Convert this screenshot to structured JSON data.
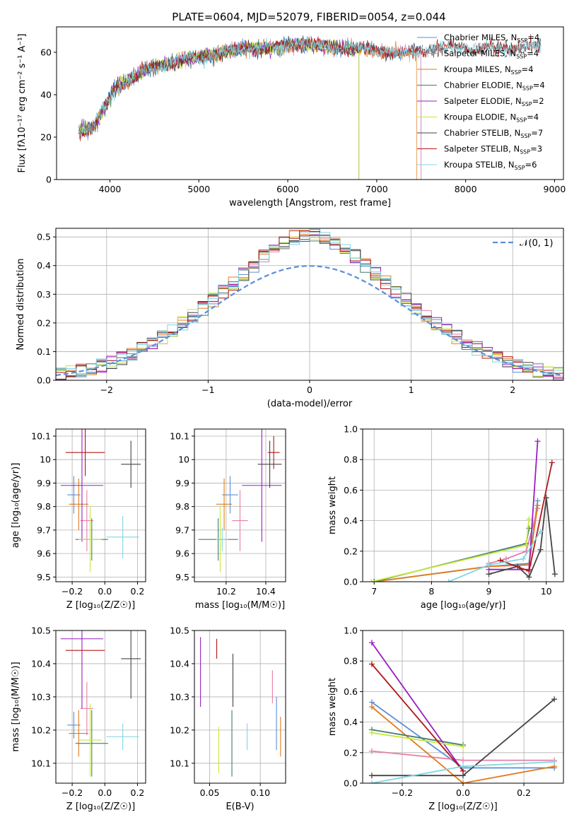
{
  "figure_title": "PLATE=0604, MJD=52079, FIBERID=0054, z=0.044",
  "colors": {
    "Chabrier MILES": "#5b8fd8",
    "Salpeter MILES": "#e67fa8",
    "Kroupa MILES": "#e07b1e",
    "Chabrier ELODIE": "#3f7f6e",
    "Salpeter ELODIE": "#9b1fc0",
    "Kroupa ELODIE": "#c8e83c",
    "Chabrier STELIB": "#444444",
    "Salpeter STELIB": "#b01818",
    "Kroupa STELIB": "#7fd6e2",
    "normal_curve": "#5b8fd8"
  },
  "chart_data": [
    {
      "id": "spectrum",
      "type": "line",
      "title": "PLATE=0604, MJD=52079, FIBERID=0054, z=0.044",
      "xlabel": "wavelength [Angstrom, rest frame]",
      "ylabel": "Flux [fλ10⁻¹⁷ erg cm⁻² s⁻¹ A⁻¹]",
      "xlim": [
        3400,
        9100
      ],
      "ylim": [
        0,
        72
      ],
      "xticks": [
        4000,
        5000,
        6000,
        7000,
        8000,
        9000
      ],
      "yticks": [
        0,
        20,
        40,
        60
      ],
      "grid": false,
      "legend_position": "top-right",
      "legend": [
        "Chabrier MILES, N_SSP=4",
        "Salpeter MILES, N_SSP=4",
        "Kroupa MILES, N_SSP=4",
        "Chabrier ELODIE, N_SSP=4",
        "Salpeter ELODIE, N_SSP=2",
        "Kroupa ELODIE, N_SSP=4",
        "Chabrier STELIB, N_SSP=7",
        "Salpeter STELIB, N_SSP=3",
        "Kroupa STELIB, N_SSP=6"
      ],
      "continuum": {
        "x": [
          3650,
          3800,
          3950,
          4050,
          4250,
          4400,
          4600,
          4900,
          5200,
          5500,
          5800,
          6100,
          6400,
          6700,
          7000,
          7300,
          7600,
          8000,
          8400,
          8800
        ],
        "y": [
          23,
          24,
          34,
          43,
          48,
          52,
          54,
          57,
          59,
          62,
          62,
          64,
          63,
          62,
          61,
          59,
          62,
          62,
          62,
          63
        ]
      },
      "curve_ranges": {
        "Chabrier MILES": [
          3650,
          7500
        ],
        "Salpeter MILES": [
          3650,
          7500
        ],
        "Kroupa MILES": [
          3650,
          7450
        ],
        "Chabrier ELODIE": [
          3650,
          6800
        ],
        "Salpeter ELODIE": [
          3650,
          6800
        ],
        "Kroupa ELODIE": [
          3650,
          6800
        ],
        "Chabrier STELIB": [
          3650,
          8850
        ],
        "Salpeter STELIB": [
          3650,
          8850
        ],
        "Kroupa STELIB": [
          3650,
          8850
        ]
      }
    },
    {
      "id": "residuals",
      "type": "line",
      "xlabel": "(data-model)/error",
      "ylabel": "Normed distribution",
      "xlim": [
        -2.5,
        2.5
      ],
      "ylim": [
        0,
        0.53
      ],
      "xticks": [
        -2,
        -1,
        0,
        1,
        2
      ],
      "xtick_labels": [
        "−2",
        "−1",
        "0",
        "1",
        "2"
      ],
      "yticks": [
        0.0,
        0.1,
        0.2,
        0.3,
        0.4,
        0.5
      ],
      "grid": true,
      "legend_position": "top-right",
      "legend": [
        "𝒩(0, 1)"
      ],
      "histogram_bins": 50
    },
    {
      "id": "age_vs_Z",
      "type": "scatter",
      "xlabel": "Z [log₁₀(Z/Z☉)]",
      "ylabel": "age  [log₁₀(age/yr)]",
      "xlim": [
        -0.3,
        0.25
      ],
      "ylim": [
        9.48,
        10.13
      ],
      "xticks": [
        -0.2,
        0.0,
        0.2
      ],
      "xtick_labels": [
        "−0.2",
        "0.0",
        "0.2"
      ],
      "yticks": [
        9.5,
        9.6,
        9.7,
        9.8,
        9.9,
        10.0,
        10.1
      ],
      "grid": true,
      "points": [
        {
          "series": "Chabrier MILES",
          "x": -0.19,
          "y": 9.85,
          "xerr": 0.04,
          "yerr": 0.08
        },
        {
          "series": "Salpeter MILES",
          "x": -0.11,
          "y": 9.74,
          "xerr": 0.04,
          "yerr": 0.13
        },
        {
          "series": "Kroupa MILES",
          "x": -0.16,
          "y": 9.81,
          "xerr": 0.06,
          "yerr": 0.11
        },
        {
          "series": "Chabrier ELODIE",
          "x": -0.08,
          "y": 9.66,
          "xerr": 0.1,
          "yerr": 0.09
        },
        {
          "series": "Salpeter ELODIE",
          "x": -0.14,
          "y": 9.89,
          "xerr": 0.13,
          "yerr": 0.24
        },
        {
          "series": "Kroupa ELODIE",
          "x": -0.09,
          "y": 9.66,
          "xerr": 0.07,
          "yerr": 0.14
        },
        {
          "series": "Chabrier STELIB",
          "x": 0.16,
          "y": 9.98,
          "xerr": 0.06,
          "yerr": 0.1
        },
        {
          "series": "Salpeter STELIB",
          "x": -0.12,
          "y": 10.03,
          "xerr": 0.12,
          "yerr": 0.1
        },
        {
          "series": "Kroupa STELIB",
          "x": 0.11,
          "y": 9.67,
          "xerr": 0.1,
          "yerr": 0.09
        }
      ]
    },
    {
      "id": "age_vs_mass",
      "type": "scatter",
      "xlabel": "mass [log₁₀(M/M☉)]",
      "xlim": [
        10.04,
        10.5
      ],
      "ylim": [
        9.48,
        10.13
      ],
      "xticks": [
        10.2,
        10.4
      ],
      "yticks": [
        9.5,
        9.6,
        9.7,
        9.8,
        9.9,
        10.0,
        10.1
      ],
      "grid": true,
      "points": [
        {
          "series": "Chabrier MILES",
          "x": 10.22,
          "y": 9.85,
          "xerr": 0.04,
          "yerr": 0.08
        },
        {
          "series": "Salpeter MILES",
          "x": 10.27,
          "y": 9.74,
          "xerr": 0.04,
          "yerr": 0.13
        },
        {
          "series": "Kroupa MILES",
          "x": 10.19,
          "y": 9.81,
          "xerr": 0.04,
          "yerr": 0.11
        },
        {
          "series": "Chabrier ELODIE",
          "x": 10.16,
          "y": 9.66,
          "xerr": 0.1,
          "yerr": 0.09
        },
        {
          "series": "Salpeter ELODIE",
          "x": 10.38,
          "y": 9.89,
          "xerr": 0.1,
          "yerr": 0.24
        },
        {
          "series": "Kroupa ELODIE",
          "x": 10.17,
          "y": 9.66,
          "xerr": 0.02,
          "yerr": 0.14
        },
        {
          "series": "Chabrier STELIB",
          "x": 10.42,
          "y": 9.98,
          "xerr": 0.06,
          "yerr": 0.1
        },
        {
          "series": "Salpeter STELIB",
          "x": 10.44,
          "y": 10.03,
          "xerr": 0.03,
          "yerr": 0.07
        },
        {
          "series": "Kroupa STELIB",
          "x": 10.18,
          "y": 9.66,
          "xerr": 0.03,
          "yerr": 0.05
        }
      ]
    },
    {
      "id": "mass_weight_vs_age",
      "type": "line",
      "xlabel": "age  [log₁₀(age/yr)]",
      "ylabel": "mass weight",
      "xlim": [
        6.8,
        10.3
      ],
      "ylim": [
        0,
        1
      ],
      "xticks": [
        7,
        8,
        9,
        10
      ],
      "yticks": [
        0.0,
        0.2,
        0.4,
        0.6,
        0.8,
        1.0
      ],
      "grid": true,
      "series": [
        {
          "series": "Chabrier MILES",
          "x": [
            7.0,
            9.0,
            9.7,
            9.85
          ],
          "y": [
            0.0,
            0.1,
            0.12,
            0.53
          ]
        },
        {
          "series": "Salpeter MILES",
          "x": [
            9.0,
            9.3,
            9.65,
            9.85
          ],
          "y": [
            0.12,
            0.15,
            0.2,
            0.48
          ]
        },
        {
          "series": "Kroupa MILES",
          "x": [
            7.0,
            9.0,
            9.7,
            9.85
          ],
          "y": [
            0.0,
            0.1,
            0.11,
            0.5
          ]
        },
        {
          "series": "Chabrier ELODIE",
          "x": [
            7.0,
            9.65,
            9.7
          ],
          "y": [
            0.0,
            0.25,
            0.35
          ]
        },
        {
          "series": "Salpeter ELODIE",
          "x": [
            9.0,
            9.7,
            9.85
          ],
          "y": [
            0.08,
            0.08,
            0.92
          ]
        },
        {
          "series": "Kroupa ELODIE",
          "x": [
            6.95,
            9.65,
            9.7
          ],
          "y": [
            0.0,
            0.24,
            0.41
          ]
        },
        {
          "series": "Chabrier STELIB",
          "x": [
            9.0,
            9.5,
            9.7,
            9.9,
            10.0,
            10.15
          ],
          "y": [
            0.05,
            0.1,
            0.03,
            0.21,
            0.55,
            0.05
          ]
        },
        {
          "series": "Salpeter STELIB",
          "x": [
            9.2,
            9.7,
            10.1
          ],
          "y": [
            0.14,
            0.07,
            0.78
          ]
        },
        {
          "series": "Kroupa STELIB",
          "x": [
            8.3,
            9.0,
            9.6,
            9.9
          ],
          "y": [
            0.0,
            0.11,
            0.15,
            0.33
          ]
        }
      ]
    },
    {
      "id": "mass_vs_Z",
      "type": "scatter",
      "xlabel": "Z [log₁₀(Z/Z☉)]",
      "ylabel": "mass [log₁₀(M/M☉)]",
      "xlim": [
        -0.3,
        0.25
      ],
      "ylim": [
        10.04,
        10.5
      ],
      "xticks": [
        -0.2,
        0.0,
        0.2
      ],
      "xtick_labels": [
        "−0.2",
        "0.0",
        "0.2"
      ],
      "yticks": [
        10.1,
        10.2,
        10.3,
        10.4,
        10.5
      ],
      "grid": true,
      "points": [
        {
          "series": "Chabrier MILES",
          "x": -0.19,
          "y": 10.215,
          "xerr": 0.04,
          "yerr": 0.04
        },
        {
          "series": "Salpeter MILES",
          "x": -0.11,
          "y": 10.265,
          "xerr": 0.04,
          "yerr": 0.08
        },
        {
          "series": "Kroupa MILES",
          "x": -0.16,
          "y": 10.19,
          "xerr": 0.06,
          "yerr": 0.07
        },
        {
          "series": "Chabrier ELODIE",
          "x": -0.08,
          "y": 10.16,
          "xerr": 0.1,
          "yerr": 0.1
        },
        {
          "series": "Salpeter ELODIE",
          "x": -0.14,
          "y": 10.475,
          "xerr": 0.13,
          "yerr": 0.21
        },
        {
          "series": "Kroupa ELODIE",
          "x": -0.09,
          "y": 10.17,
          "xerr": 0.07,
          "yerr": 0.11
        },
        {
          "series": "Chabrier STELIB",
          "x": 0.16,
          "y": 10.415,
          "xerr": 0.06,
          "yerr": 0.12
        },
        {
          "series": "Salpeter STELIB",
          "x": -0.12,
          "y": 10.44,
          "xerr": 0.12,
          "yerr": 0.0
        },
        {
          "series": "Kroupa STELIB",
          "x": 0.11,
          "y": 10.18,
          "xerr": 0.1,
          "yerr": 0.04
        }
      ]
    },
    {
      "id": "mass_vs_ebv",
      "type": "scatter",
      "xlabel": "E(B-V)",
      "xlim": [
        0.035,
        0.125
      ],
      "ylim": [
        10.04,
        10.5
      ],
      "xticks": [
        0.05,
        0.1
      ],
      "xtick_labels": [
        "0.05",
        "0.10"
      ],
      "yticks": [
        10.1,
        10.2,
        10.3,
        10.4,
        10.5
      ],
      "grid": true,
      "points": [
        {
          "series": "Chabrier MILES",
          "x": 0.116,
          "y": 10.22,
          "xerr": 0.0,
          "yerr": 0.08
        },
        {
          "series": "Salpeter MILES",
          "x": 0.112,
          "y": 10.33,
          "xerr": 0.0,
          "yerr": 0.05
        },
        {
          "series": "Kroupa MILES",
          "x": 0.12,
          "y": 10.18,
          "xerr": 0.0,
          "yerr": 0.06
        },
        {
          "series": "Chabrier ELODIE",
          "x": 0.072,
          "y": 10.16,
          "xerr": 0.0,
          "yerr": 0.1
        },
        {
          "series": "Salpeter ELODIE",
          "x": 0.041,
          "y": 10.375,
          "xerr": 0.0,
          "yerr": 0.105
        },
        {
          "series": "Kroupa ELODIE",
          "x": 0.059,
          "y": 10.14,
          "xerr": 0.0,
          "yerr": 0.07
        },
        {
          "series": "Chabrier STELIB",
          "x": 0.073,
          "y": 10.35,
          "xerr": 0.0,
          "yerr": 0.08
        },
        {
          "series": "Salpeter STELIB",
          "x": 0.057,
          "y": 10.445,
          "xerr": 0.0,
          "yerr": 0.03
        },
        {
          "series": "Kroupa STELIB",
          "x": 0.087,
          "y": 10.18,
          "xerr": 0.0,
          "yerr": 0.04
        }
      ]
    },
    {
      "id": "mass_weight_vs_Z",
      "type": "line",
      "xlabel": "Z [log₁₀(Z/Z☉)]",
      "ylabel": "mass weight",
      "xlim": [
        -0.33,
        0.33
      ],
      "ylim": [
        0,
        1
      ],
      "xticks": [
        -0.2,
        0.0,
        0.2
      ],
      "xtick_labels": [
        "−0.2",
        "0.0",
        "0.2"
      ],
      "yticks": [
        0.0,
        0.2,
        0.4,
        0.6,
        0.8,
        1.0
      ],
      "grid": true,
      "series": [
        {
          "series": "Chabrier MILES",
          "x": [
            -0.3,
            0.0,
            0.3
          ],
          "y": [
            0.53,
            0.1,
            0.1
          ]
        },
        {
          "series": "Salpeter MILES",
          "x": [
            -0.3,
            0.0,
            0.3
          ],
          "y": [
            0.21,
            0.15,
            0.15
          ]
        },
        {
          "series": "Kroupa MILES",
          "x": [
            -0.3,
            0.0,
            0.3
          ],
          "y": [
            0.5,
            0.0,
            0.11
          ]
        },
        {
          "series": "Chabrier ELODIE",
          "x": [
            -0.3,
            0.0
          ],
          "y": [
            0.35,
            0.25
          ]
        },
        {
          "series": "Salpeter ELODIE",
          "x": [
            -0.3,
            0.0
          ],
          "y": [
            0.92,
            0.08
          ]
        },
        {
          "series": "Kroupa ELODIE",
          "x": [
            -0.3,
            0.0
          ],
          "y": [
            0.33,
            0.24
          ]
        },
        {
          "series": "Chabrier STELIB",
          "x": [
            -0.3,
            0.0,
            0.3
          ],
          "y": [
            0.05,
            0.05,
            0.55
          ]
        },
        {
          "series": "Salpeter STELIB",
          "x": [
            -0.3,
            0.0
          ],
          "y": [
            0.78,
            0.08
          ]
        },
        {
          "series": "Kroupa STELIB",
          "x": [
            -0.3,
            0.0,
            0.3
          ],
          "y": [
            0.0,
            0.11,
            0.14
          ]
        }
      ]
    }
  ]
}
